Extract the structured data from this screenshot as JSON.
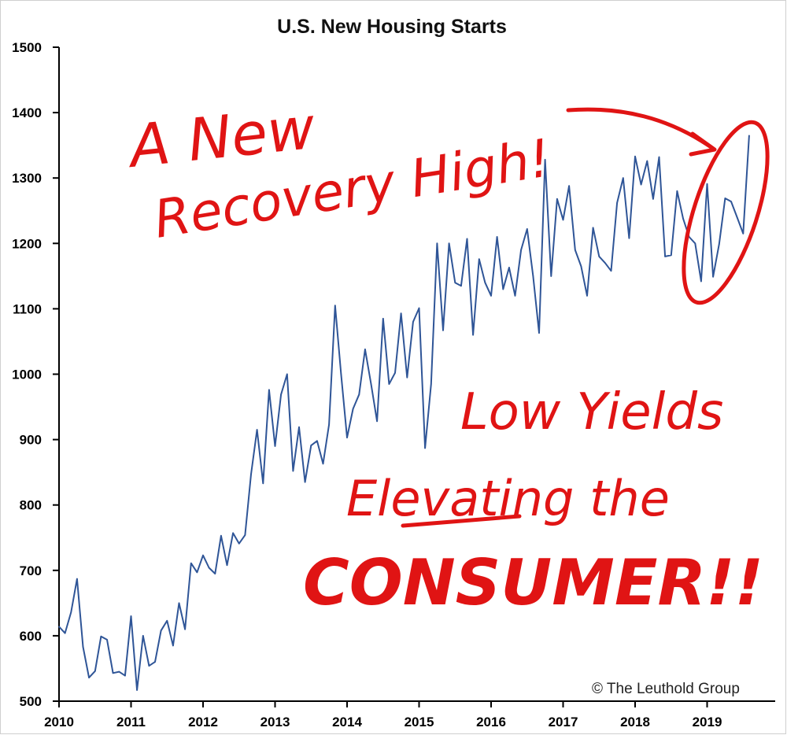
{
  "chart_data": {
    "type": "line",
    "title": "U.S. New Housing Starts",
    "xlabel": "",
    "ylabel": "",
    "ylim": [
      500,
      1500
    ],
    "y_ticks": [
      "500",
      "600",
      "700",
      "800",
      "900",
      "1000",
      "1100",
      "1200",
      "1300",
      "1400",
      "1500"
    ],
    "x_ticks": [
      "2010",
      "2011",
      "2012",
      "2013",
      "2014",
      "2015",
      "2016",
      "2017",
      "2018",
      "2019"
    ],
    "grid": false,
    "series": [
      {
        "color": "#2f5597",
        "x": [
          "2010-01",
          "2010-02",
          "2010-03",
          "2010-04",
          "2010-05",
          "2010-06",
          "2010-07",
          "2010-08",
          "2010-09",
          "2010-10",
          "2010-11",
          "2010-12",
          "2011-01",
          "2011-02",
          "2011-03",
          "2011-04",
          "2011-05",
          "2011-06",
          "2011-07",
          "2011-08",
          "2011-09",
          "2011-10",
          "2011-11",
          "2011-12",
          "2012-01",
          "2012-02",
          "2012-03",
          "2012-04",
          "2012-05",
          "2012-06",
          "2012-07",
          "2012-08",
          "2012-09",
          "2012-10",
          "2012-11",
          "2012-12",
          "2013-01",
          "2013-02",
          "2013-03",
          "2013-04",
          "2013-05",
          "2013-06",
          "2013-07",
          "2013-08",
          "2013-09",
          "2013-10",
          "2013-11",
          "2013-12",
          "2014-01",
          "2014-02",
          "2014-03",
          "2014-04",
          "2014-05",
          "2014-06",
          "2014-07",
          "2014-08",
          "2014-09",
          "2014-10",
          "2014-11",
          "2014-12",
          "2015-01",
          "2015-02",
          "2015-03",
          "2015-04",
          "2015-05",
          "2015-06",
          "2015-07",
          "2015-08",
          "2015-09",
          "2015-10",
          "2015-11",
          "2015-12",
          "2016-01",
          "2016-02",
          "2016-03",
          "2016-04",
          "2016-05",
          "2016-06",
          "2016-07",
          "2016-08",
          "2016-09",
          "2016-10",
          "2016-11",
          "2016-12",
          "2017-01",
          "2017-02",
          "2017-03",
          "2017-04",
          "2017-05",
          "2017-06",
          "2017-07",
          "2017-08",
          "2017-09",
          "2017-10",
          "2017-11",
          "2017-12",
          "2018-01",
          "2018-02",
          "2018-03",
          "2018-04",
          "2018-05",
          "2018-06",
          "2018-07",
          "2018-08",
          "2018-09",
          "2018-10",
          "2018-11",
          "2018-12",
          "2019-01",
          "2019-02",
          "2019-03",
          "2019-04",
          "2019-05",
          "2019-06",
          "2019-07",
          "2019-08"
        ],
        "values": [
          614,
          604,
          636,
          687,
          583,
          536,
          546,
          599,
          594,
          543,
          545,
          539,
          630,
          517,
          600,
          554,
          560,
          608,
          623,
          585,
          650,
          610,
          711,
          697,
          723,
          704,
          695,
          753,
          708,
          757,
          741,
          754,
          847,
          915,
          833,
          976,
          890,
          969,
          1000,
          852,
          919,
          835,
          891,
          898,
          863,
          923,
          1105,
          1000,
          903,
          947,
          969,
          1038,
          985,
          928,
          1085,
          985,
          1002,
          1093,
          995,
          1080,
          1101,
          887,
          985,
          1200,
          1067,
          1200,
          1140,
          1135,
          1207,
          1060,
          1176,
          1140,
          1120,
          1210,
          1130,
          1163,
          1120,
          1190,
          1222,
          1150,
          1063,
          1328,
          1150,
          1268,
          1236,
          1288,
          1190,
          1165,
          1120,
          1224,
          1180,
          1170,
          1158,
          1262,
          1300,
          1208,
          1333,
          1290,
          1326,
          1268,
          1332,
          1180,
          1182,
          1280,
          1238,
          1210,
          1200,
          1142,
          1291,
          1149,
          1199,
          1269,
          1264,
          1240,
          1215,
          1365
        ]
      }
    ],
    "credit": "© The Leuthold Group"
  },
  "annotations": {
    "line1": "A New",
    "line2": "Recovery High!",
    "line3": "Low Yields",
    "line4": "Elevating the",
    "line5": "CONSUMER!!"
  }
}
